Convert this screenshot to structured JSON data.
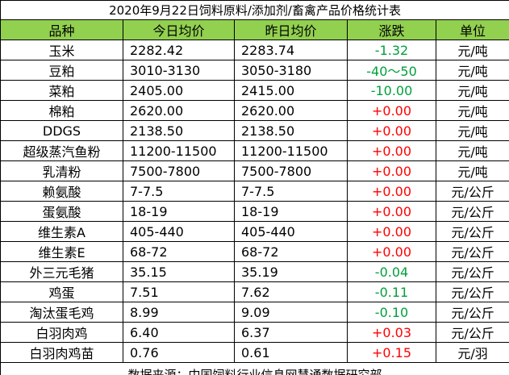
{
  "table": {
    "title": "2020年9月22日饲料原料/添加剂/畜禽产品价格统计表",
    "header": [
      "品种",
      "今日均价",
      "昨日均价",
      "涨跌",
      "单位"
    ],
    "rows": [
      [
        "玉米",
        "2282.42",
        "2283.74",
        "-1.32",
        "元/吨"
      ],
      [
        "豆粕",
        "3010-3130",
        "3050-3180",
        "-40～50",
        "元/吨"
      ],
      [
        "菜粕",
        "2405.00",
        "2415.00",
        "-10.00",
        "元/吨"
      ],
      [
        "棉粕",
        "2620.00",
        "2620.00",
        "+0.00",
        "元/吨"
      ],
      [
        "DDGS",
        "2138.50",
        "2138.50",
        "+0.00",
        "元/吨"
      ],
      [
        "超级蒸汽鱼粉",
        "11200-11500",
        "11200-11500",
        "+0.00",
        "元/吨"
      ],
      [
        "乳清粉",
        "7500-7800",
        "7500-7800",
        "+0.00",
        "元/吨"
      ],
      [
        "赖氨酸",
        "7-7.5",
        "7-7.5",
        "+0.00",
        "元/公斤"
      ],
      [
        "蛋氨酸",
        "18-19",
        "18-19",
        "+0.00",
        "元/公斤"
      ],
      [
        "维生素A",
        "405-440",
        "405-440",
        "+0.00",
        "元/公斤"
      ],
      [
        "维生素E",
        "68-72",
        "68-72",
        "+0.00",
        "元/公斤"
      ],
      [
        "外三元毛猪",
        "35.15",
        "35.19",
        "-0.04",
        "元/公斤"
      ],
      [
        "鸡蛋",
        "7.51",
        "7.62",
        "-0.11",
        "元/公斤"
      ],
      [
        "淘汰蛋毛鸡",
        "8.99",
        "9.09",
        "-0.10",
        "元/公斤"
      ],
      [
        "白羽肉鸡",
        "6.40",
        "6.37",
        "+0.03",
        "元/公斤"
      ],
      [
        "白羽肉鸡苗",
        "0.76",
        "0.61",
        "+0.15",
        "元/羽"
      ]
    ],
    "footer": "数据来源：中国饲料行业信息网慧通数据研究部"
  }
}
